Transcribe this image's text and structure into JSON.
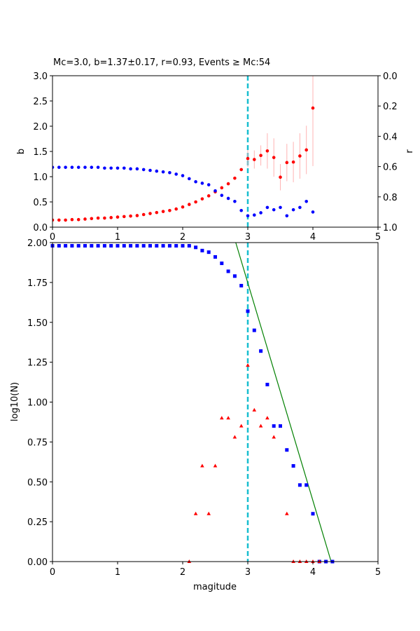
{
  "chart_data": [
    {
      "type": "scatter",
      "title": "Mc=3.0, b=1.37±0.17, r=0.93, Events ≥ Mc:54",
      "xlabel": "",
      "ylabel": "b",
      "y2label": "r",
      "xlim": [
        0,
        5
      ],
      "ylim": [
        0,
        3.0
      ],
      "y2lim": [
        1.0,
        0.0
      ],
      "y2_inverted": true,
      "x_ticks": [
        "0",
        "1",
        "2",
        "3",
        "4",
        "5"
      ],
      "y_ticks": [
        "0.0",
        "0.5",
        "1.0",
        "1.5",
        "2.0",
        "2.5",
        "3.0"
      ],
      "y2_ticks": [
        "0.0",
        "0.2",
        "0.4",
        "0.6",
        "0.8",
        "1.0"
      ],
      "mc_line_x": 3.0,
      "mc_line_color": "#17becf",
      "series": [
        {
          "color": "#ff0000",
          "axis": "left",
          "x": [
            0.0,
            0.1,
            0.2,
            0.3,
            0.4,
            0.5,
            0.6,
            0.7,
            0.8,
            0.9,
            1.0,
            1.1,
            1.2,
            1.3,
            1.4,
            1.5,
            1.6,
            1.7,
            1.8,
            1.9,
            2.0,
            2.1,
            2.2,
            2.3,
            2.4,
            2.5,
            2.6,
            2.7,
            2.8,
            2.9,
            3.0,
            3.1,
            3.2,
            3.3,
            3.4,
            3.5,
            3.6,
            3.7,
            3.8,
            3.9,
            4.0
          ],
          "y": [
            0.14,
            0.14,
            0.14,
            0.15,
            0.15,
            0.16,
            0.17,
            0.18,
            0.18,
            0.19,
            0.2,
            0.21,
            0.22,
            0.23,
            0.25,
            0.27,
            0.29,
            0.31,
            0.33,
            0.36,
            0.4,
            0.45,
            0.5,
            0.56,
            0.62,
            0.7,
            0.78,
            0.86,
            0.97,
            1.14,
            1.36,
            1.34,
            1.42,
            1.51,
            1.38,
            0.99,
            1.28,
            1.29,
            1.41,
            1.53,
            2.36
          ],
          "yerr": [
            0,
            0,
            0,
            0,
            0,
            0,
            0,
            0,
            0,
            0,
            0,
            0,
            0,
            0,
            0,
            0,
            0,
            0,
            0,
            0,
            0,
            0,
            0,
            0,
            0,
            0,
            0,
            0,
            0,
            0,
            0.17,
            0.18,
            0.2,
            0.35,
            0.38,
            0.26,
            0.37,
            0.4,
            0.45,
            0.48,
            1.15
          ]
        },
        {
          "color": "#0000ff",
          "axis": "right",
          "x": [
            0.0,
            0.1,
            0.2,
            0.3,
            0.4,
            0.5,
            0.6,
            0.7,
            0.8,
            0.9,
            1.0,
            1.1,
            1.2,
            1.3,
            1.4,
            1.5,
            1.6,
            1.7,
            1.8,
            1.9,
            2.0,
            2.1,
            2.2,
            2.3,
            2.4,
            2.5,
            2.6,
            2.7,
            2.8,
            2.9,
            3.0,
            3.1,
            3.2,
            3.3,
            3.4,
            3.5,
            3.6,
            3.7,
            3.8,
            3.9,
            4.0
          ],
          "y": [
            0.605,
            0.605,
            0.605,
            0.605,
            0.605,
            0.605,
            0.605,
            0.605,
            0.61,
            0.61,
            0.61,
            0.61,
            0.615,
            0.615,
            0.62,
            0.625,
            0.63,
            0.635,
            0.64,
            0.65,
            0.66,
            0.68,
            0.7,
            0.71,
            0.72,
            0.76,
            0.79,
            0.81,
            0.83,
            0.89,
            0.925,
            0.92,
            0.905,
            0.87,
            0.885,
            0.87,
            0.925,
            0.885,
            0.87,
            0.83,
            0.9
          ]
        }
      ]
    },
    {
      "type": "scatter",
      "title": "",
      "xlabel": "magitude",
      "ylabel": "log10(N)",
      "xlim": [
        0,
        5
      ],
      "ylim": [
        0,
        2.0
      ],
      "x_ticks": [
        "0",
        "1",
        "2",
        "3",
        "4",
        "5"
      ],
      "y_ticks": [
        "0.00",
        "0.25",
        "0.50",
        "0.75",
        "1.00",
        "1.25",
        "1.50",
        "1.75",
        "2.00"
      ],
      "mc_line_x": 3.0,
      "mc_line_color": "#17becf",
      "fit_line": {
        "color": "#008000",
        "x": [
          2.815,
          4.28
        ],
        "y": [
          2.0,
          0.0
        ]
      },
      "series": [
        {
          "marker": "square",
          "color": "#0000ff",
          "x": [
            0.0,
            0.1,
            0.2,
            0.3,
            0.4,
            0.5,
            0.6,
            0.7,
            0.8,
            0.9,
            1.0,
            1.1,
            1.2,
            1.3,
            1.4,
            1.5,
            1.6,
            1.7,
            1.8,
            1.9,
            2.0,
            2.1,
            2.2,
            2.3,
            2.4,
            2.5,
            2.6,
            2.7,
            2.8,
            2.9,
            3.0,
            3.1,
            3.2,
            3.3,
            3.4,
            3.5,
            3.6,
            3.7,
            3.8,
            3.9,
            4.0,
            4.1,
            4.2,
            4.3
          ],
          "y": [
            1.98,
            1.98,
            1.98,
            1.98,
            1.98,
            1.98,
            1.98,
            1.98,
            1.98,
            1.98,
            1.98,
            1.98,
            1.98,
            1.98,
            1.98,
            1.98,
            1.98,
            1.98,
            1.98,
            1.98,
            1.98,
            1.98,
            1.97,
            1.95,
            1.94,
            1.91,
            1.87,
            1.82,
            1.79,
            1.73,
            1.57,
            1.45,
            1.32,
            1.11,
            0.85,
            0.85,
            0.7,
            0.6,
            0.48,
            0.48,
            0.3,
            0.0,
            0.0,
            0.0
          ]
        },
        {
          "marker": "triangle",
          "color": "#ff0000",
          "x": [
            2.1,
            2.2,
            2.3,
            2.4,
            2.5,
            2.6,
            2.7,
            2.8,
            2.9,
            3.0,
            3.1,
            3.2,
            3.3,
            3.4,
            3.6,
            3.7,
            3.8,
            3.9,
            4.0,
            4.1
          ],
          "y": [
            0.0,
            0.3,
            0.6,
            0.3,
            0.6,
            0.9,
            0.9,
            0.78,
            0.85,
            1.23,
            0.95,
            0.85,
            0.9,
            0.78,
            0.3,
            0.0,
            0.0,
            0.0,
            0.0,
            0.0
          ]
        }
      ]
    }
  ]
}
